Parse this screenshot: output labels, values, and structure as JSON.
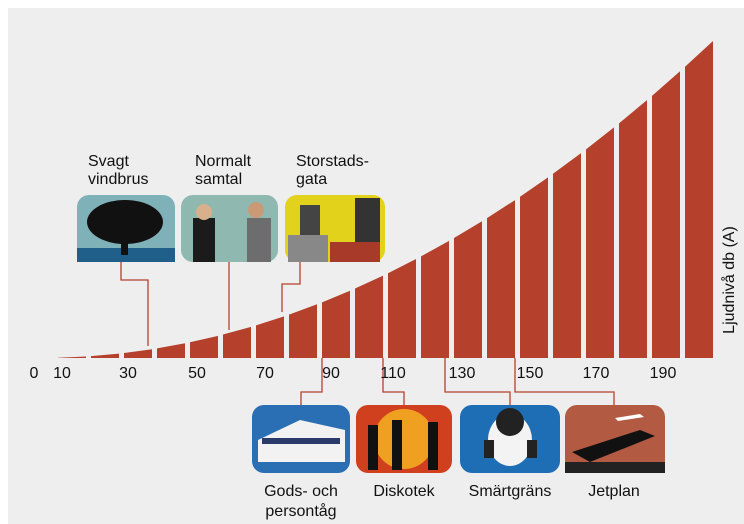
{
  "axis_title": "Ljudnivå db (A)",
  "ticks": [
    0,
    10,
    30,
    50,
    70,
    90,
    110,
    130,
    150,
    170,
    190
  ],
  "callouts_above": [
    {
      "lines": [
        "Svagt",
        "vindbrus"
      ]
    },
    {
      "lines": [
        "Normalt",
        "samtal"
      ]
    },
    {
      "lines": [
        "Storstads-",
        "gata"
      ]
    }
  ],
  "callouts_below": [
    {
      "lines": [
        "Gods- och",
        "persontåg"
      ]
    },
    {
      "lines": [
        "Diskotek"
      ]
    },
    {
      "lines": [
        "Smärtgräns"
      ]
    },
    {
      "lines": [
        "Jetplan"
      ]
    }
  ]
}
